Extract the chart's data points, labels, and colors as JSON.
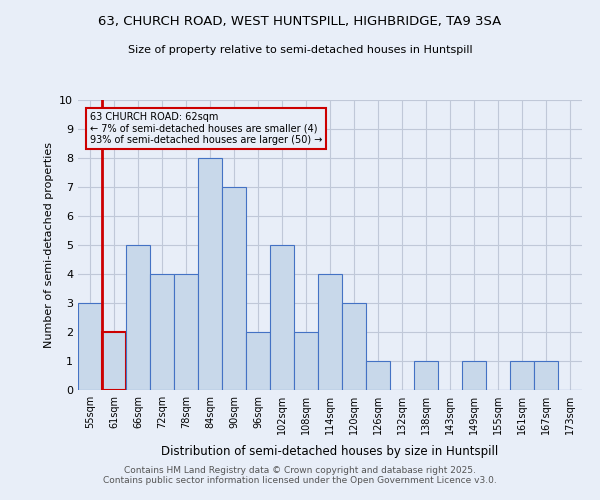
{
  "title_line1": "63, CHURCH ROAD, WEST HUNTSPILL, HIGHBRIDGE, TA9 3SA",
  "title_line2": "Size of property relative to semi-detached houses in Huntspill",
  "xlabel": "Distribution of semi-detached houses by size in Huntspill",
  "ylabel": "Number of semi-detached properties",
  "bins": [
    "55sqm",
    "61sqm",
    "66sqm",
    "72sqm",
    "78sqm",
    "84sqm",
    "90sqm",
    "96sqm",
    "102sqm",
    "108sqm",
    "114sqm",
    "120sqm",
    "126sqm",
    "132sqm",
    "138sqm",
    "143sqm",
    "149sqm",
    "155sqm",
    "161sqm",
    "167sqm",
    "173sqm"
  ],
  "values": [
    3,
    2,
    5,
    4,
    4,
    8,
    7,
    2,
    5,
    2,
    4,
    3,
    1,
    0,
    1,
    0,
    1,
    0,
    1,
    1,
    0
  ],
  "highlight_bin": 1,
  "annotation_line1": "63 CHURCH ROAD: 62sqm",
  "annotation_line2": "← 7% of semi-detached houses are smaller (4)",
  "annotation_line3": "93% of semi-detached houses are larger (50) →",
  "bar_color": "#c8d8ea",
  "bar_edge_color": "#4472c4",
  "highlight_bar_edge_color": "#cc0000",
  "highlight_line_color": "#cc0000",
  "annotation_box_edge": "#cc0000",
  "grid_color": "#c0c8d8",
  "bg_color": "#e8eef8",
  "ylim": [
    0,
    10
  ],
  "yticks": [
    0,
    1,
    2,
    3,
    4,
    5,
    6,
    7,
    8,
    9,
    10
  ],
  "footer1": "Contains HM Land Registry data © Crown copyright and database right 2025.",
  "footer2": "Contains public sector information licensed under the Open Government Licence v3.0."
}
